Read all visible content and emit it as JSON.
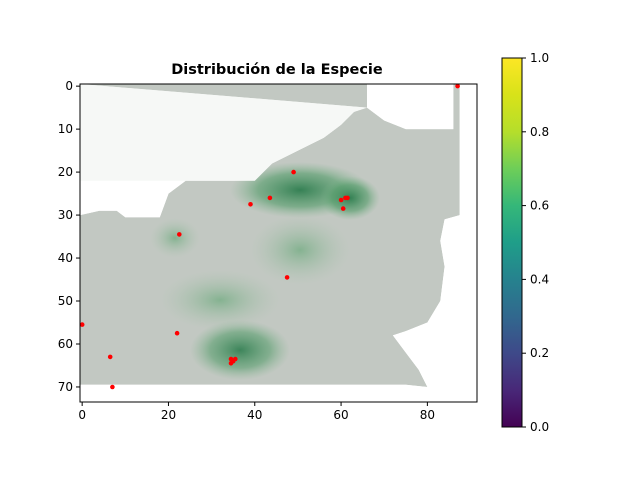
{
  "chart_data": {
    "type": "heatmap",
    "title": "Distribución de la Especie",
    "xlabel": "",
    "ylabel": "",
    "xlim": [
      -0.5,
      91.5
    ],
    "ylim": [
      73.5,
      -0.5
    ],
    "x_ticks": [
      0,
      20,
      40,
      60,
      80
    ],
    "y_ticks": [
      0,
      10,
      20,
      30,
      40,
      50,
      60,
      70
    ],
    "colorbar": {
      "colormap": "viridis",
      "range": [
        0.0,
        1.0
      ],
      "ticks": [
        0.0,
        0.2,
        0.4,
        0.6,
        0.8,
        1.0
      ],
      "tick_labels": [
        "0.0",
        "0.2",
        "0.4",
        "0.6",
        "0.8",
        "1.0"
      ]
    },
    "background_colors": {
      "low": "#c2c8c2",
      "mid": "#7fb58c",
      "high": "#2e7d4f"
    },
    "occurrence_points": {
      "color": "#ff0000",
      "points": [
        {
          "x": 87,
          "y": 0
        },
        {
          "x": 49,
          "y": 20
        },
        {
          "x": 43.5,
          "y": 26
        },
        {
          "x": 39,
          "y": 27.5
        },
        {
          "x": 60,
          "y": 26.5
        },
        {
          "x": 61,
          "y": 26
        },
        {
          "x": 61.5,
          "y": 26
        },
        {
          "x": 60.5,
          "y": 28.5
        },
        {
          "x": 22.5,
          "y": 34.5
        },
        {
          "x": 47.5,
          "y": 44.5
        },
        {
          "x": 0,
          "y": 55.5
        },
        {
          "x": 22,
          "y": 57.5
        },
        {
          "x": 6.5,
          "y": 63
        },
        {
          "x": 34.5,
          "y": 63.5
        },
        {
          "x": 35.5,
          "y": 63.5
        },
        {
          "x": 34.5,
          "y": 64.5
        },
        {
          "x": 35,
          "y": 64
        },
        {
          "x": 7,
          "y": 70
        }
      ]
    }
  }
}
